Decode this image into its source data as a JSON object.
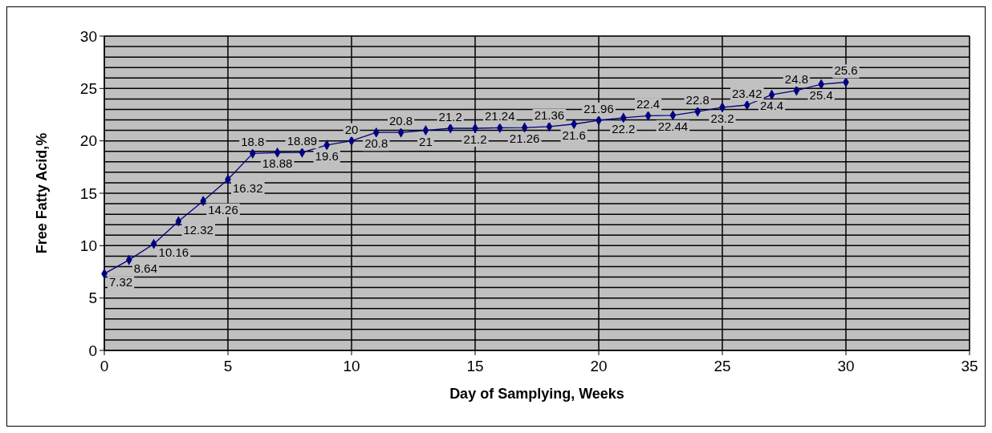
{
  "chart_data": {
    "type": "line",
    "xlabel": "Day of Samplying, Weeks",
    "ylabel": "Free Fatty Acid,%",
    "x": [
      0,
      1,
      2,
      3,
      4,
      5,
      6,
      7,
      8,
      9,
      10,
      11,
      12,
      13,
      14,
      15,
      16,
      17,
      18,
      19,
      20,
      21,
      22,
      23,
      24,
      25,
      26,
      27,
      28,
      29,
      30
    ],
    "series": [
      {
        "color": "#000080",
        "values": [
          7.32,
          8.64,
          10.16,
          12.32,
          14.26,
          16.32,
          18.8,
          18.88,
          18.89,
          19.6,
          20,
          20.8,
          20.8,
          21,
          21.2,
          21.2,
          21.24,
          21.26,
          21.36,
          21.6,
          21.96,
          22.2,
          22.4,
          22.44,
          22.8,
          23.2,
          23.42,
          24.4,
          24.8,
          25.4,
          25.6
        ]
      }
    ],
    "xlim": [
      0,
      35
    ],
    "xticks": [
      0,
      5,
      10,
      15,
      20,
      25,
      30,
      35
    ],
    "ylim": [
      0,
      30
    ],
    "yticks": [
      0,
      {
        "value": 1,
        "label": null
      },
      {
        "value": 2,
        "label": null
      },
      {
        "value": 3,
        "label": null
      },
      {
        "value": 4,
        "label": null
      },
      5,
      {
        "value": 6,
        "label": null
      },
      {
        "value": 7,
        "label": null
      },
      {
        "value": 8,
        "label": null
      },
      {
        "value": 9,
        "label": null
      },
      10,
      {
        "value": 11,
        "label": null
      },
      {
        "value": 12,
        "label": null
      },
      {
        "value": 13,
        "label": null
      },
      {
        "value": 14,
        "label": null
      },
      15,
      {
        "value": 16,
        "label": null
      },
      {
        "value": 17,
        "label": null
      },
      {
        "value": 18,
        "label": null
      },
      {
        "value": 19,
        "label": null
      },
      20,
      {
        "value": 21,
        "label": null
      },
      {
        "value": 22,
        "label": null
      },
      {
        "value": 23,
        "label": null
      },
      {
        "value": 24,
        "label": null
      },
      25,
      {
        "value": 26,
        "label": null
      },
      {
        "value": 27,
        "label": null
      },
      {
        "value": 28,
        "label": null
      },
      {
        "value": 29,
        "label": null
      },
      30
    ],
    "grid": true,
    "marker": "diamond",
    "line_style": "solid",
    "data_labels": true
  }
}
